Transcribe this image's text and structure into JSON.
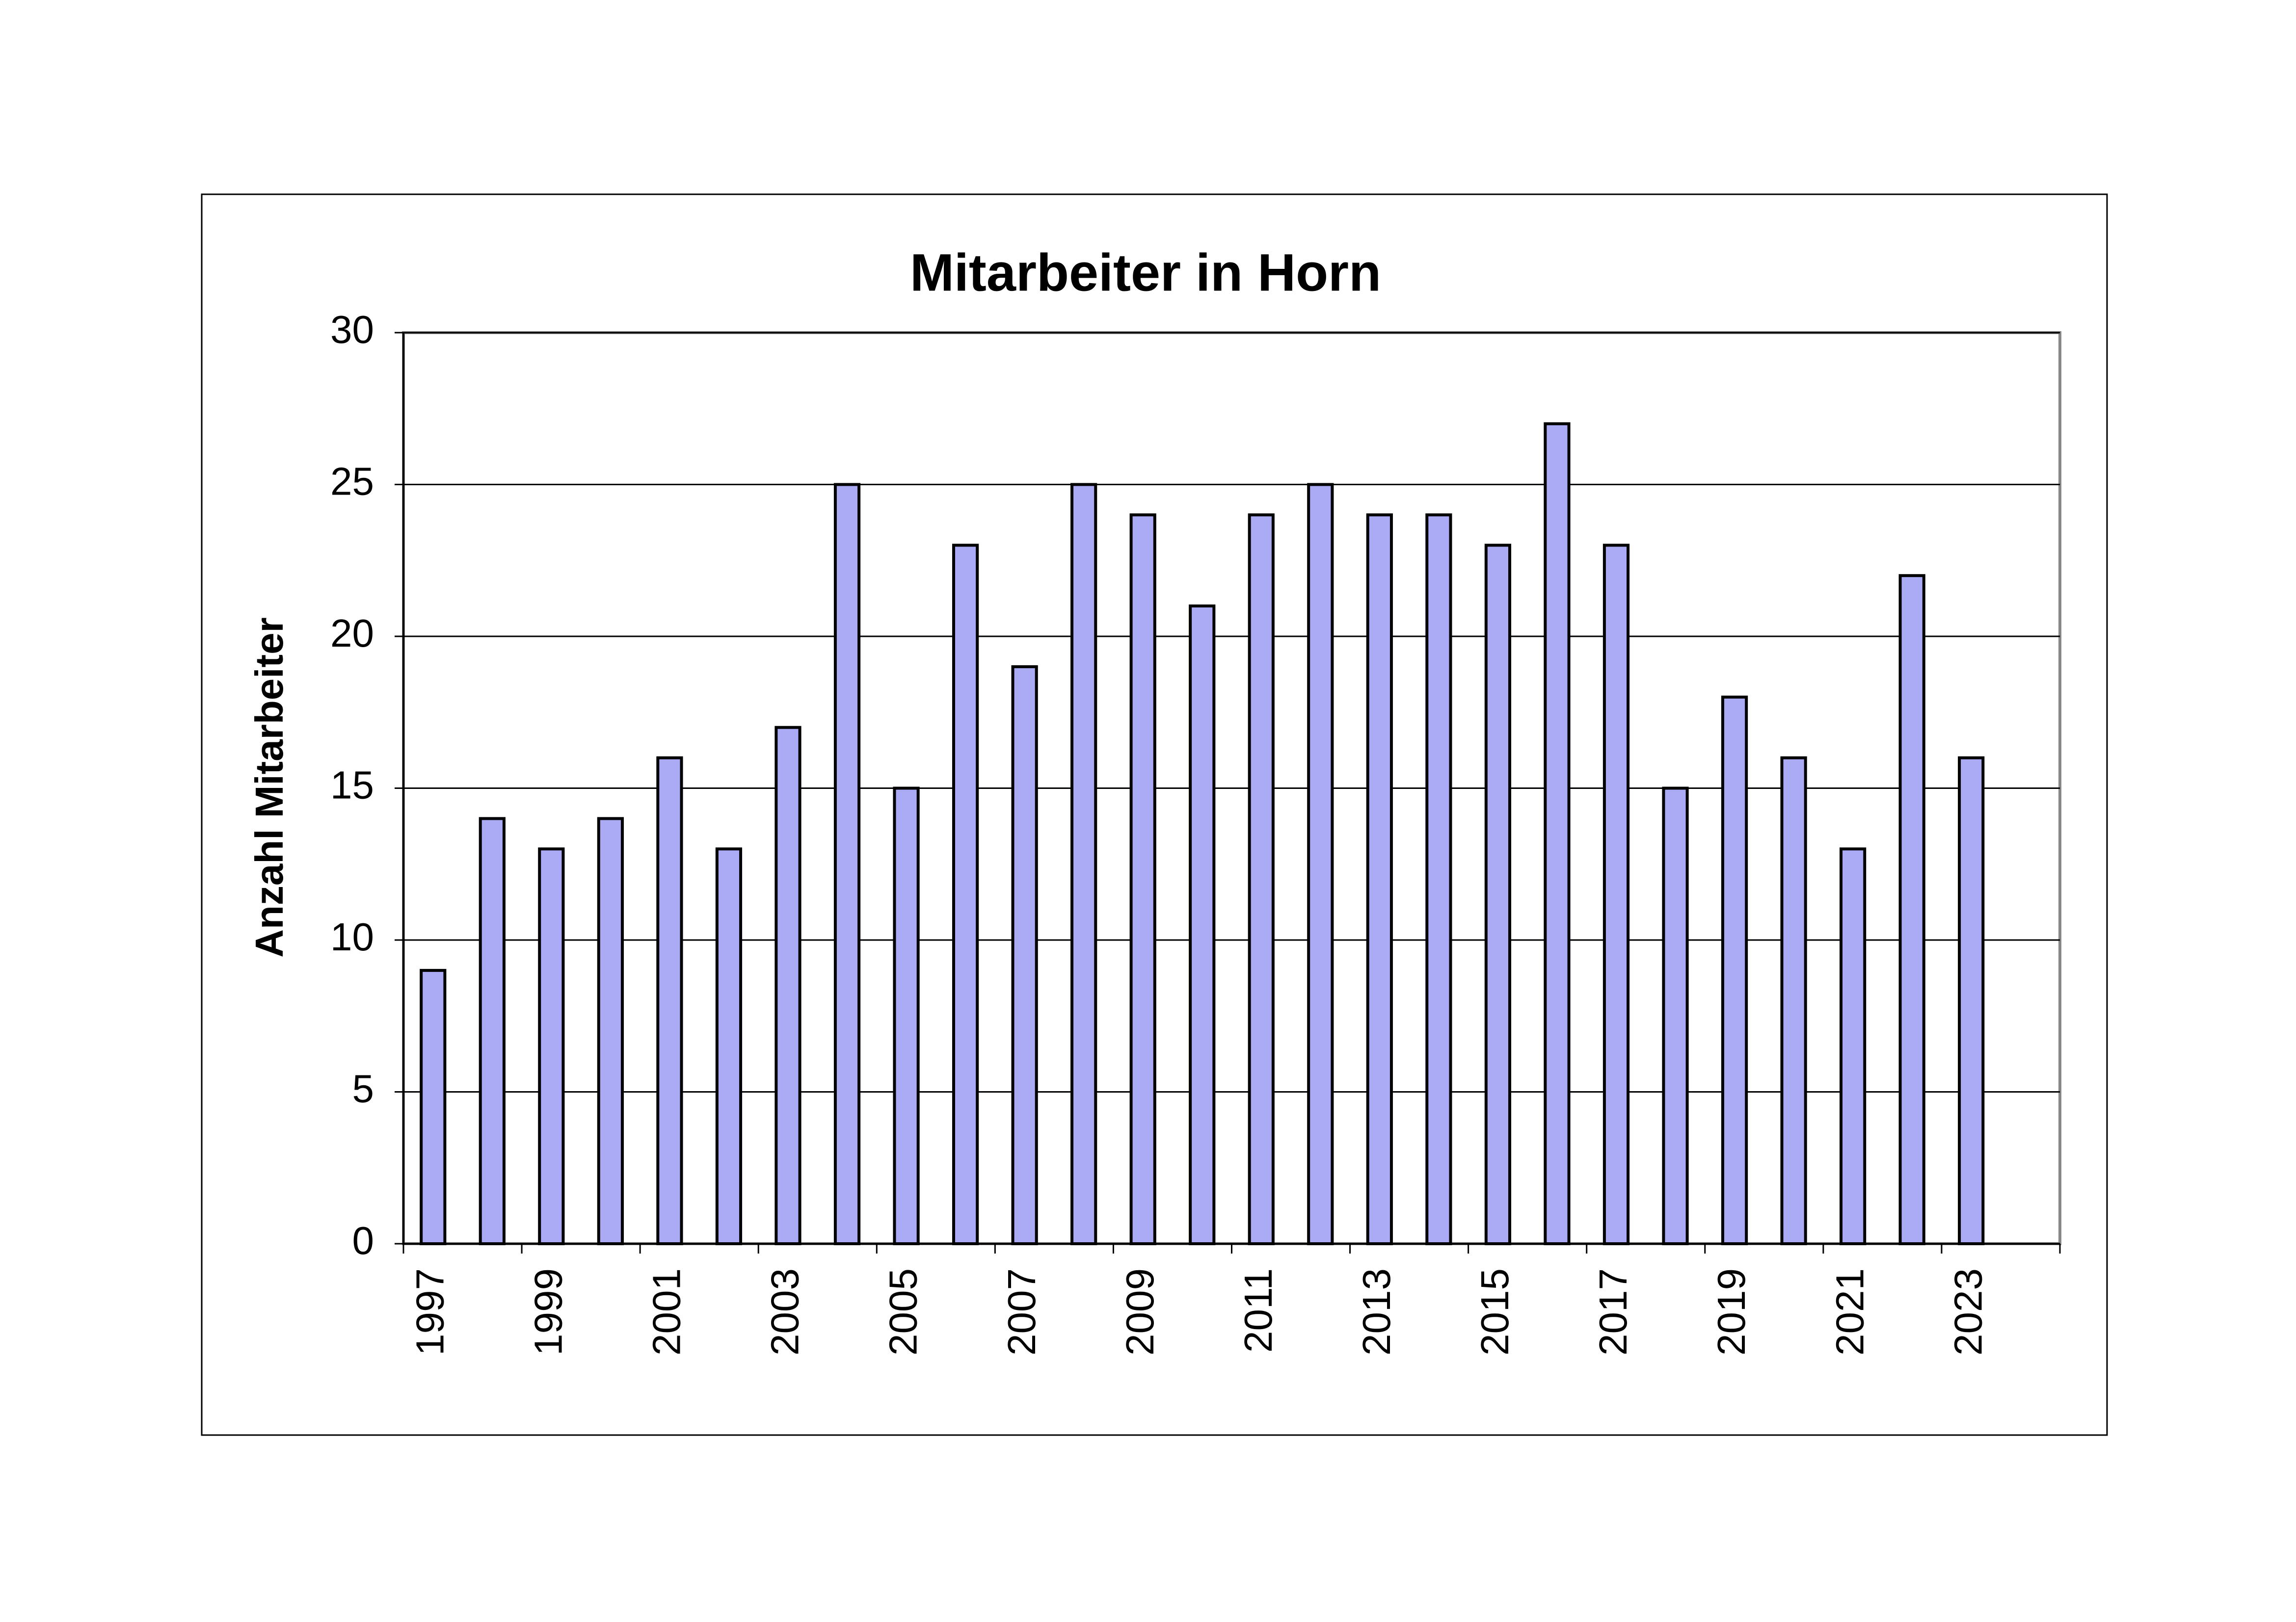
{
  "chart_data": {
    "type": "bar",
    "title": "Mitarbeiter in Horn",
    "y_label": "Anzahl Mitarbeiter",
    "categories": [
      "1997",
      null,
      "1999",
      null,
      "2001",
      null,
      "2003",
      null,
      "2005",
      null,
      "2007",
      null,
      "2009",
      null,
      "2011",
      null,
      "2013",
      null,
      "2015",
      null,
      "2017",
      null,
      "2019",
      null,
      "2021",
      null,
      "2023",
      null
    ],
    "values": [
      9,
      14,
      13,
      14,
      16,
      13,
      17,
      25,
      15,
      23,
      19,
      25,
      24,
      21,
      24,
      25,
      24,
      24,
      23,
      27,
      23,
      15,
      18,
      16,
      13,
      22,
      16,
      null
    ],
    "color": "#aaaaf5",
    "ylim": [
      0,
      30
    ],
    "yticks": [
      0,
      5,
      10,
      15,
      20,
      25,
      30
    ],
    "grid": true
  }
}
